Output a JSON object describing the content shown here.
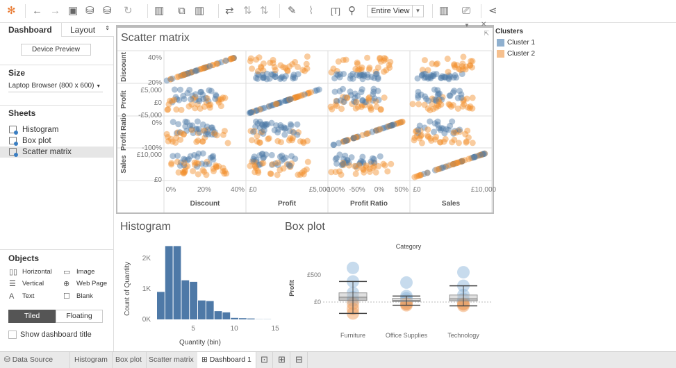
{
  "toolbar": {
    "view_select": "Entire View",
    "icons": [
      "tableau-logo-icon",
      "back-icon",
      "forward-icon",
      "save-icon",
      "new-datasource-icon",
      "pause-icon",
      "refresh-icon",
      "new-worksheet-icon",
      "duplicate-icon",
      "clear-icon",
      "swap-icon",
      "sort-asc-icon",
      "sort-desc-icon",
      "highlight-icon",
      "attach-icon",
      "label-icon",
      "pin-icon",
      "show-me-icon",
      "presentation-icon",
      "share-icon"
    ]
  },
  "left": {
    "tabs": [
      "Dashboard",
      "Layout"
    ],
    "device_preview": "Device Preview",
    "size_header": "Size",
    "size_value": "Laptop Browser (800 x 600)",
    "sheets_header": "Sheets",
    "sheets": [
      "Histogram",
      "Box plot",
      "Scatter matrix"
    ],
    "objects_header": "Objects",
    "objects": [
      {
        "label": "Horizontal",
        "icon": "▯▯"
      },
      {
        "label": "Image",
        "icon": "▭"
      },
      {
        "label": "Vertical",
        "icon": "☰"
      },
      {
        "label": "Web Page",
        "icon": "⊕"
      },
      {
        "label": "Text",
        "icon": "A"
      },
      {
        "label": "Blank",
        "icon": "☐"
      }
    ],
    "tiled": "Tiled",
    "floating": "Floating",
    "show_title": "Show dashboard title"
  },
  "legend": {
    "title": "Clusters",
    "items": [
      {
        "label": "Cluster 1",
        "color": "#4e79a7"
      },
      {
        "label": "Cluster 2",
        "color": "#f28e2b"
      }
    ]
  },
  "bottom_tabs": {
    "data_source": "Data Source",
    "sheets": [
      "Histogram",
      "Box plot",
      "Scatter matrix",
      "Dashboard 1"
    ]
  },
  "chart_data": [
    {
      "type": "scatter",
      "title": "Scatter matrix",
      "variables": [
        "Discount",
        "Profit",
        "Profit Ratio",
        "Sales"
      ],
      "row_labels": [
        "Discount",
        "Profit",
        "Profit Ratio",
        "Sales"
      ],
      "y_ticks": [
        [
          "40%",
          "20%"
        ],
        [
          "£5,000",
          "£0",
          "-£5,000"
        ],
        [
          "0%",
          "-100%"
        ],
        [
          "£10,000",
          "£0"
        ]
      ],
      "x_ticks": [
        [
          "0%",
          "20%",
          "40%"
        ],
        [
          "£0",
          "£5,000"
        ],
        [
          "-100%",
          "-50%",
          "0%",
          "50%"
        ],
        [
          "£0",
          "£10,000"
        ]
      ],
      "series": [
        "Cluster 1",
        "Cluster 2"
      ]
    },
    {
      "type": "bar",
      "title": "Histogram",
      "xlabel": "Quantity (bin)",
      "ylabel": "Count of Quantity",
      "x": [
        1,
        2,
        3,
        4,
        5,
        6,
        7,
        8,
        9,
        10,
        11,
        12,
        13,
        14
      ],
      "values": [
        900,
        2400,
        2400,
        1280,
        1230,
        620,
        600,
        270,
        230,
        50,
        40,
        30,
        5,
        5
      ],
      "x_ticks": [
        "5",
        "10",
        "15"
      ],
      "y_ticks": [
        "0K",
        "1K",
        "2K"
      ],
      "ylim": [
        0,
        2500
      ]
    },
    {
      "type": "box",
      "title": "Box plot",
      "header": "Category",
      "ylabel": "Profit",
      "categories": [
        "Furniture",
        "Office Supplies",
        "Technology"
      ],
      "y_ticks": [
        "£500",
        "£0"
      ],
      "boxes": [
        {
          "min": -210,
          "q1": 30,
          "median": 90,
          "q3": 170,
          "max": 380
        },
        {
          "min": -60,
          "q1": 10,
          "median": 30,
          "q3": 70,
          "max": 110
        },
        {
          "min": -70,
          "q1": 20,
          "median": 60,
          "q3": 130,
          "max": 300
        }
      ]
    }
  ]
}
